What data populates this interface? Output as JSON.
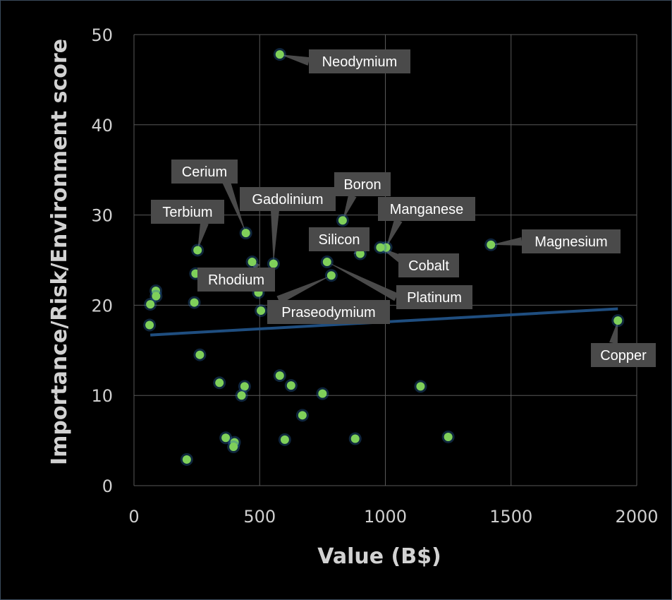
{
  "colors": {
    "background": "#000000",
    "grid": "#595959",
    "point": "#7fd05a",
    "point_glow": "#2a6cb0",
    "trendline": "#1f4e80",
    "callout_fill": "#4a4a4a",
    "callout_text": "#ffffff",
    "text": "#d0d0d0"
  },
  "chart_data": {
    "type": "scatter",
    "title": "",
    "xlabel": "Value (B$)",
    "ylabel": "Importance/Risk/Environment score",
    "xlim": [
      0,
      2000
    ],
    "ylim": [
      0,
      50
    ],
    "x_ticks": [
      0,
      500,
      1000,
      1500,
      2000
    ],
    "y_ticks": [
      0,
      10,
      20,
      30,
      40,
      50
    ],
    "grid": true,
    "legend": "none",
    "trendline": {
      "type": "linear",
      "from": [
        65,
        16.7
      ],
      "to": [
        1925,
        19.6
      ]
    },
    "labeled_points": [
      {
        "label": "Neodymium",
        "x": 580,
        "y": 47.8
      },
      {
        "label": "Cerium",
        "x": 445,
        "y": 28.0
      },
      {
        "label": "Terbium",
        "x": 253,
        "y": 26.1
      },
      {
        "label": "Gadolinium",
        "x": 555,
        "y": 24.6
      },
      {
        "label": "Boron",
        "x": 830,
        "y": 29.4
      },
      {
        "label": "Manganese",
        "x": 1003,
        "y": 26.4
      },
      {
        "label": "Silicon",
        "x": 900,
        "y": 25.7
      },
      {
        "label": "Cobalt",
        "x": 980,
        "y": 26.4
      },
      {
        "label": "Magnesium",
        "x": 1420,
        "y": 26.7
      },
      {
        "label": "Rhodium",
        "x": 470,
        "y": 24.8
      },
      {
        "label": "Platinum",
        "x": 768,
        "y": 24.8
      },
      {
        "label": "Praseodymium",
        "x": 785,
        "y": 23.3
      },
      {
        "label": "Copper",
        "x": 1925,
        "y": 18.3
      }
    ],
    "unlabeled_points": [
      {
        "x": 245,
        "y": 23.5
      },
      {
        "x": 495,
        "y": 21.4
      },
      {
        "x": 505,
        "y": 19.4
      },
      {
        "x": 87,
        "y": 21.6
      },
      {
        "x": 88,
        "y": 21.0
      },
      {
        "x": 65,
        "y": 20.1
      },
      {
        "x": 62,
        "y": 17.8
      },
      {
        "x": 240,
        "y": 20.3
      },
      {
        "x": 262,
        "y": 14.5
      },
      {
        "x": 340,
        "y": 11.4
      },
      {
        "x": 440,
        "y": 11.0
      },
      {
        "x": 428,
        "y": 10.0
      },
      {
        "x": 580,
        "y": 12.2
      },
      {
        "x": 625,
        "y": 11.1
      },
      {
        "x": 750,
        "y": 10.2
      },
      {
        "x": 670,
        "y": 7.8
      },
      {
        "x": 1140,
        "y": 11.0
      },
      {
        "x": 365,
        "y": 5.3
      },
      {
        "x": 400,
        "y": 4.8
      },
      {
        "x": 396,
        "y": 4.3
      },
      {
        "x": 600,
        "y": 5.1
      },
      {
        "x": 880,
        "y": 5.2
      },
      {
        "x": 1250,
        "y": 5.4
      },
      {
        "x": 210,
        "y": 2.9
      }
    ]
  }
}
